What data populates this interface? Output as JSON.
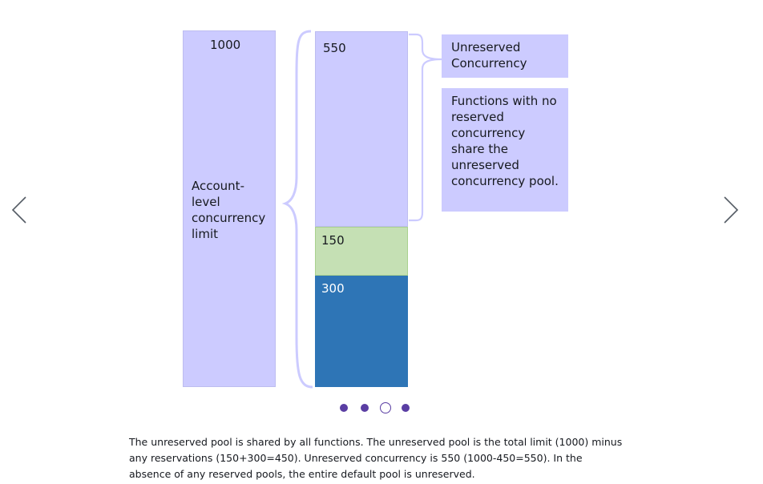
{
  "diagram": {
    "account_bar": {
      "value": "1000",
      "label": "Account-\nlevel\nconcurrency\nlimit"
    },
    "unreserved_bar": {
      "value": "550"
    },
    "reserved_bars": [
      {
        "value": "150",
        "color": "#c5e0b4"
      },
      {
        "value": "300",
        "color": "#2e75b6"
      }
    ],
    "callouts": {
      "unreserved_title": "Unreserved Concurrency",
      "note": "Functions with no reserved concurrency share the unreserved concurrency pool."
    }
  },
  "carousel": {
    "prev_icon": "chevron-left-icon",
    "next_icon": "chevron-right-icon",
    "dots": 4,
    "active_dot": 3,
    "dot_color": "#5a3ea3"
  },
  "caption": "The unreserved pool is shared by all functions. The unreserved pool is the total limit (1000) minus any reservations (150+300=450). Unreserved concurrency is 550 (1000-450=550). In the absence of any reserved pools, the entire default pool is unreserved."
}
